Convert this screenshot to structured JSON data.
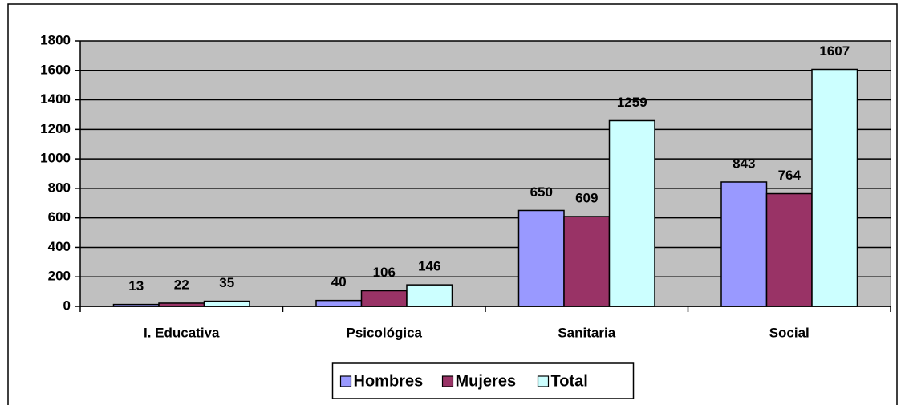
{
  "chart_data": {
    "type": "bar",
    "categories": [
      "I. Educativa",
      "Psicológica",
      "Sanitaria",
      "Social"
    ],
    "series": [
      {
        "name": "Hombres",
        "color": "#9999ff",
        "values": [
          13,
          40,
          650,
          843
        ]
      },
      {
        "name": "Mujeres",
        "color": "#993366",
        "values": [
          22,
          106,
          609,
          764
        ]
      },
      {
        "name": "Total",
        "color": "#ccffff",
        "values": [
          35,
          146,
          1259,
          1607
        ]
      }
    ],
    "ylim": [
      0,
      1800
    ],
    "yticks": [
      0,
      200,
      400,
      600,
      800,
      1000,
      1200,
      1400,
      1600,
      1800
    ],
    "grid": true,
    "legend": "bottom",
    "plot_background": "#c0c0c0"
  }
}
